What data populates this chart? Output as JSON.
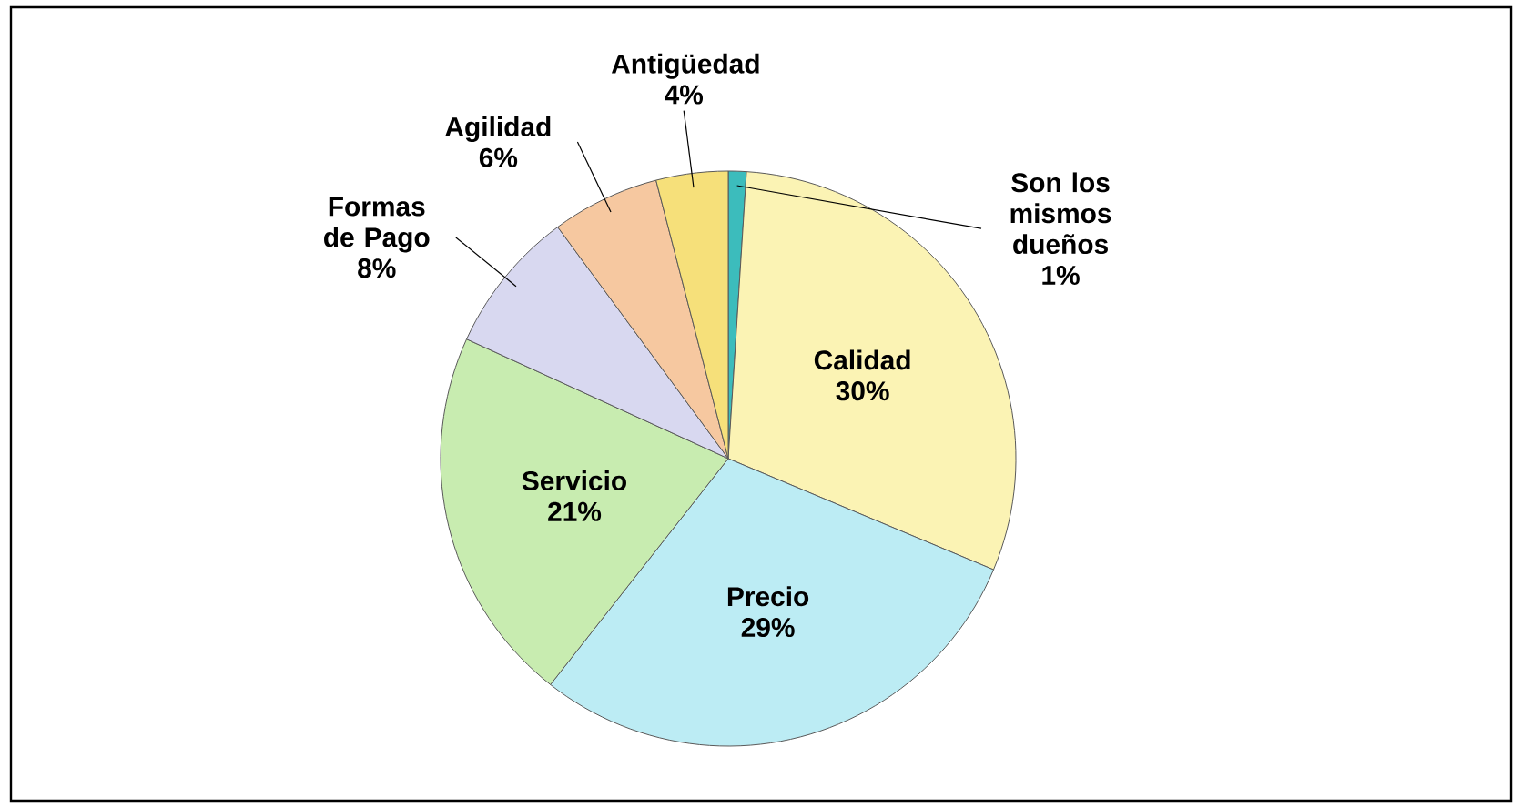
{
  "chart_data": {
    "type": "pie",
    "categories": [
      "Son los mismos dueños",
      "Calidad",
      "Precio",
      "Servicio",
      "Formas de Pago",
      "Agilidad",
      "Antigüedad"
    ],
    "values": [
      1,
      30,
      29,
      21,
      8,
      6,
      4
    ],
    "value_labels": [
      "1%",
      "30%",
      "29%",
      "21%",
      "8%",
      "6%",
      "4%"
    ],
    "colors": [
      "#3cbcbc",
      "#fbf3b4",
      "#bcecf4",
      "#c8ecb0",
      "#d8d8f0",
      "#f6c8a0",
      "#f6e07a"
    ]
  }
}
